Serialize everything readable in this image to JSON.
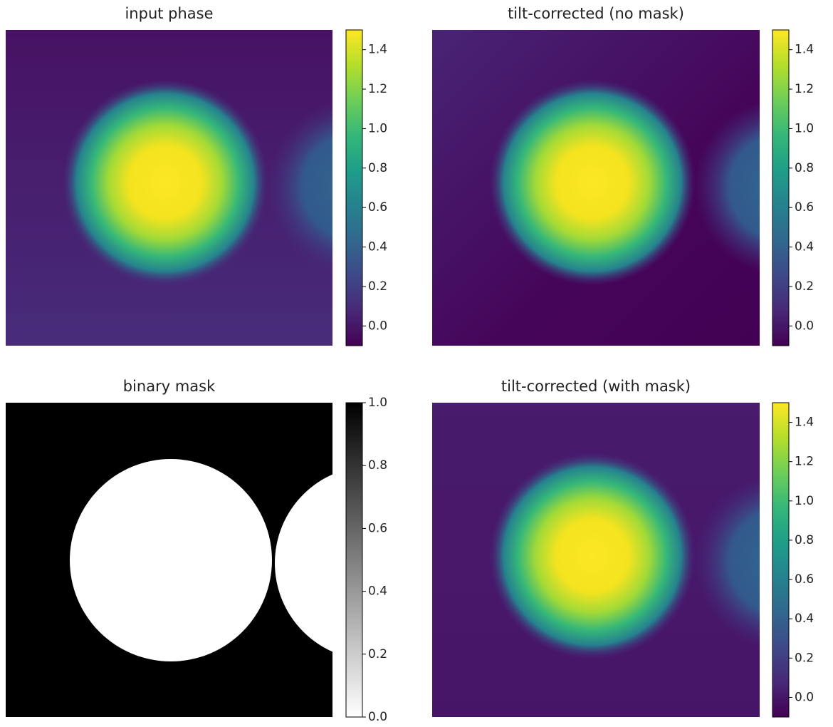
{
  "chart_data": [
    {
      "type": "image",
      "title": "input phase",
      "colormap": "viridis",
      "clim": [
        -0.1,
        1.5
      ],
      "cticks": [
        {
          "value": 0,
          "label": "0.0"
        },
        0.2,
        0.4,
        0.6,
        0.8,
        {
          "value": 1,
          "label": "1.0"
        },
        1.2,
        1.4
      ]
    },
    {
      "type": "image",
      "title": "tilt-corrected (no mask)",
      "colormap": "viridis",
      "clim": [
        -0.1,
        1.5
      ],
      "cticks": [
        {
          "value": 0,
          "label": "0.0"
        },
        0.2,
        0.4,
        0.6,
        0.8,
        {
          "value": 1,
          "label": "1.0"
        },
        1.2,
        1.4
      ]
    },
    {
      "type": "image",
      "title": "binary mask",
      "colormap": "gray_r",
      "clim": [
        0,
        1
      ],
      "cticks": [
        {
          "value": 0,
          "label": "0.0"
        },
        0.2,
        0.4,
        0.6,
        0.8,
        {
          "value": 1,
          "label": "1.0"
        }
      ]
    },
    {
      "type": "image",
      "title": "tilt-corrected (with mask)",
      "colormap": "viridis",
      "clim": [
        -0.1,
        1.5
      ],
      "cticks": [
        {
          "value": 0,
          "label": "0.0"
        },
        0.2,
        0.4,
        0.6,
        0.8,
        {
          "value": 1,
          "label": "1.0"
        },
        1.2,
        1.4
      ]
    }
  ]
}
